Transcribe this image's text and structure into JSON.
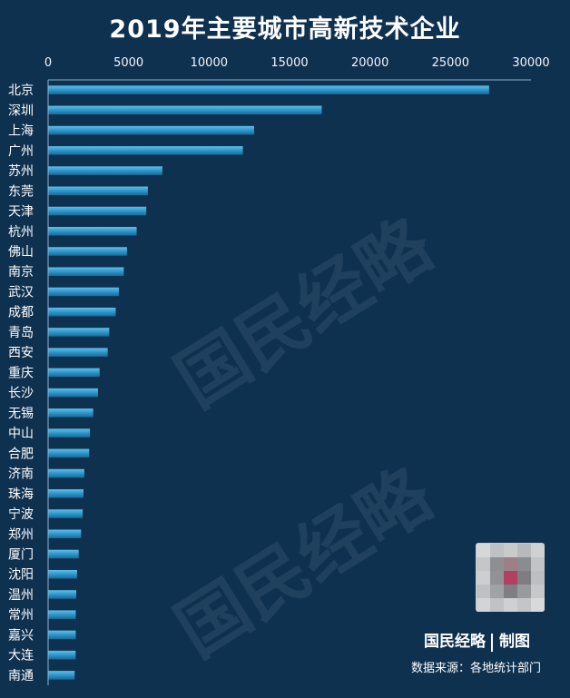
{
  "chart_data": {
    "type": "bar",
    "orientation": "horizontal",
    "title": "2019年主要城市高新技术企业",
    "categories": [
      "北京",
      "深圳",
      "上海",
      "广州",
      "苏州",
      "东莞",
      "天津",
      "杭州",
      "佛山",
      "南京",
      "武汉",
      "成都",
      "青岛",
      "西安",
      "重庆",
      "长沙",
      "无锡",
      "中山",
      "合肥",
      "济南",
      "珠海",
      "宁波",
      "郑州",
      "厦门",
      "沈阳",
      "温州",
      "常州",
      "嘉兴",
      "大连",
      "南通"
    ],
    "values": [
      27400,
      17000,
      12800,
      12100,
      7100,
      6200,
      6100,
      5500,
      4900,
      4700,
      4400,
      4200,
      3800,
      3700,
      3200,
      3100,
      2800,
      2600,
      2550,
      2250,
      2200,
      2150,
      2050,
      1900,
      1800,
      1750,
      1720,
      1720,
      1710,
      1650
    ],
    "xlim": [
      0,
      30000
    ],
    "x_ticks": [
      "0",
      "5000",
      "10000",
      "15000",
      "20000",
      "25000",
      "30000"
    ],
    "x_tick_values": [
      0,
      5000,
      10000,
      15000,
      20000,
      25000,
      30000
    ],
    "axis_position": "top",
    "grid": false,
    "legend": "none",
    "colors": {
      "background": "#0f3150",
      "bar_light": "#5cc0ec",
      "bar_mid": "#2b92c5",
      "bar_dark": "#1a6b98",
      "axis": "#8fb3cf",
      "text": "#ffffff"
    }
  },
  "watermark": "国民经略",
  "footer": {
    "brand": "国民经略",
    "brand_suffix": "制图",
    "source": "数据来源：各地统计部门"
  },
  "qr_code": {
    "icon": "qr-code-icon",
    "blurred": true
  }
}
